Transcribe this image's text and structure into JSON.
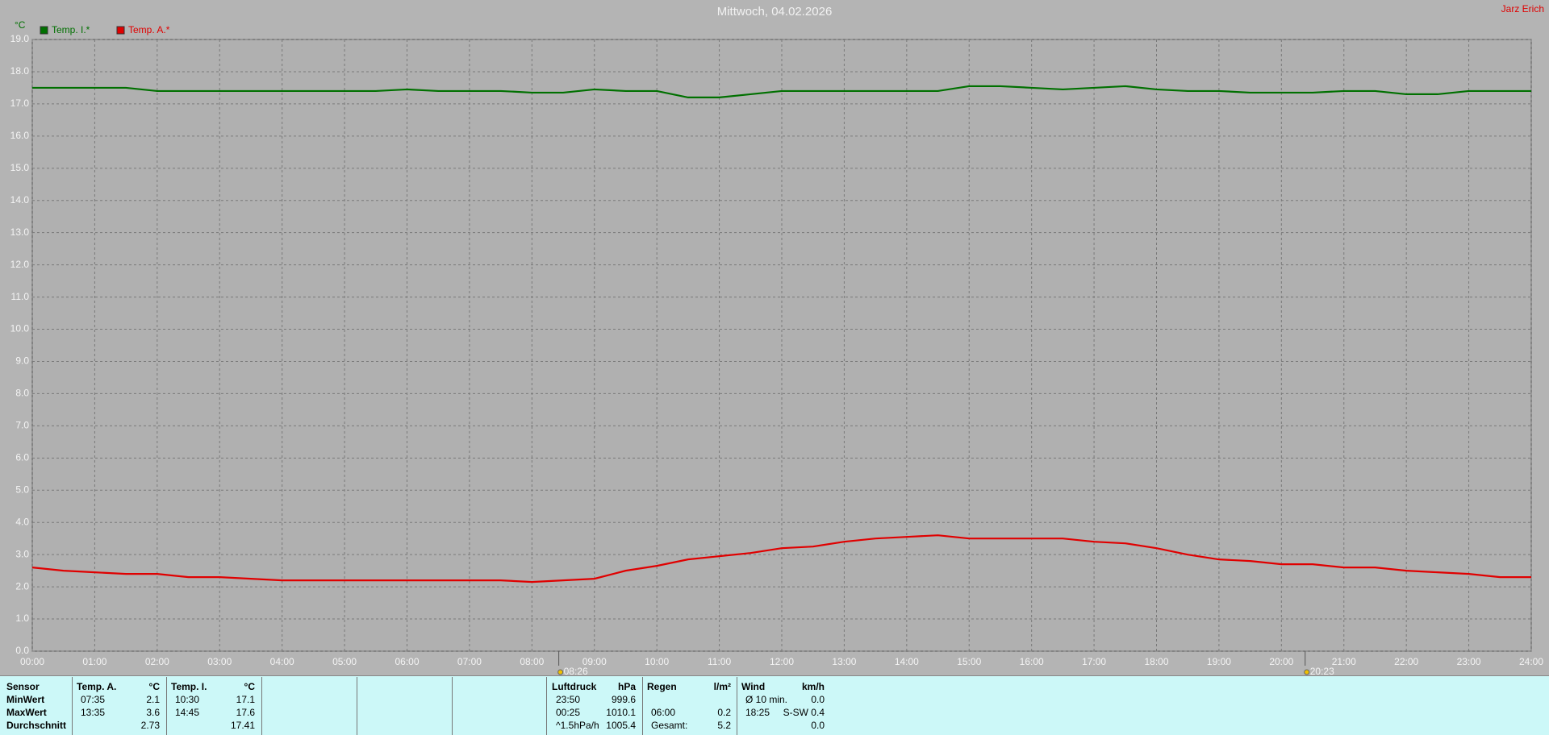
{
  "chart_data": {
    "type": "line",
    "title": "Mittwoch, 04.02.2026",
    "owner": "Jarz Erich",
    "y_unit": "°C",
    "x": [
      0,
      0.5,
      1,
      1.5,
      2,
      2.5,
      3,
      3.5,
      4,
      4.5,
      5,
      5.5,
      6,
      6.5,
      7,
      7.5,
      8,
      8.5,
      9,
      9.5,
      10,
      10.5,
      11,
      11.5,
      12,
      12.5,
      13,
      13.5,
      14,
      14.5,
      15,
      15.5,
      16,
      16.5,
      17,
      17.5,
      18,
      18.5,
      19,
      19.5,
      20,
      20.5,
      21,
      21.5,
      22,
      22.5,
      23,
      23.5,
      24
    ],
    "series": [
      {
        "name": "Temp. I.*",
        "color": "#007000",
        "values": [
          17.5,
          17.5,
          17.5,
          17.5,
          17.4,
          17.4,
          17.4,
          17.4,
          17.4,
          17.4,
          17.4,
          17.4,
          17.45,
          17.4,
          17.4,
          17.4,
          17.35,
          17.35,
          17.45,
          17.4,
          17.4,
          17.2,
          17.2,
          17.3,
          17.4,
          17.4,
          17.4,
          17.4,
          17.4,
          17.4,
          17.55,
          17.55,
          17.5,
          17.45,
          17.5,
          17.55,
          17.45,
          17.4,
          17.4,
          17.35,
          17.35,
          17.35,
          17.4,
          17.4,
          17.3,
          17.3,
          17.4,
          17.4,
          17.4
        ]
      },
      {
        "name": "Temp. A.*",
        "color": "#e00000",
        "values": [
          2.6,
          2.5,
          2.45,
          2.4,
          2.4,
          2.3,
          2.3,
          2.25,
          2.2,
          2.2,
          2.2,
          2.2,
          2.2,
          2.2,
          2.2,
          2.2,
          2.15,
          2.2,
          2.25,
          2.5,
          2.65,
          2.85,
          2.95,
          3.05,
          3.2,
          3.25,
          3.4,
          3.5,
          3.55,
          3.6,
          3.5,
          3.5,
          3.5,
          3.5,
          3.4,
          3.35,
          3.2,
          3.0,
          2.85,
          2.8,
          2.7,
          2.7,
          2.6,
          2.6,
          2.5,
          2.45,
          2.4,
          2.3,
          2.3
        ]
      }
    ],
    "xlim": [
      0,
      24
    ],
    "xticks": [
      {
        "value": 0,
        "label": "00:00"
      },
      {
        "value": 1,
        "label": "01:00"
      },
      {
        "value": 2,
        "label": "02:00"
      },
      {
        "value": 3,
        "label": "03:00"
      },
      {
        "value": 4,
        "label": "04:00"
      },
      {
        "value": 5,
        "label": "05:00"
      },
      {
        "value": 6,
        "label": "06:00"
      },
      {
        "value": 7,
        "label": "07:00"
      },
      {
        "value": 8,
        "label": "08:00"
      },
      {
        "value": 9,
        "label": "09:00"
      },
      {
        "value": 10,
        "label": "10:00"
      },
      {
        "value": 11,
        "label": "11:00"
      },
      {
        "value": 12,
        "label": "12:00"
      },
      {
        "value": 13,
        "label": "13:00"
      },
      {
        "value": 14,
        "label": "14:00"
      },
      {
        "value": 15,
        "label": "15:00"
      },
      {
        "value": 16,
        "label": "16:00"
      },
      {
        "value": 17,
        "label": "17:00"
      },
      {
        "value": 18,
        "label": "18:00"
      },
      {
        "value": 19,
        "label": "19:00"
      },
      {
        "value": 20,
        "label": "20:00"
      },
      {
        "value": 21,
        "label": "21:00"
      },
      {
        "value": 22,
        "label": "22:00"
      },
      {
        "value": 23,
        "label": "23:00"
      },
      {
        "value": 24,
        "label": "24:00"
      }
    ],
    "ylim": [
      0,
      19
    ],
    "yticks": [
      {
        "value": 0,
        "label": "0.0"
      },
      {
        "value": 1,
        "label": "1.0"
      },
      {
        "value": 2,
        "label": "2.0"
      },
      {
        "value": 3,
        "label": "3.0"
      },
      {
        "value": 4,
        "label": "4.0"
      },
      {
        "value": 5,
        "label": "5.0"
      },
      {
        "value": 6,
        "label": "6.0"
      },
      {
        "value": 7,
        "label": "7.0"
      },
      {
        "value": 8,
        "label": "8.0"
      },
      {
        "value": 9,
        "label": "9.0"
      },
      {
        "value": 10,
        "label": "10.0"
      },
      {
        "value": 11,
        "label": "11.0"
      },
      {
        "value": 12,
        "label": "12.0"
      },
      {
        "value": 13,
        "label": "13.0"
      },
      {
        "value": 14,
        "label": "14.0"
      },
      {
        "value": 15,
        "label": "15.0"
      },
      {
        "value": 16,
        "label": "16.0"
      },
      {
        "value": 17,
        "label": "17.0"
      },
      {
        "value": 18,
        "label": "18.0"
      },
      {
        "value": 19,
        "label": "19.0"
      }
    ],
    "grid": true,
    "sun_markers": [
      {
        "value": 8.43,
        "label": "08:26"
      },
      {
        "value": 20.38,
        "label": "20:23"
      }
    ]
  },
  "table": {
    "columns": [
      [
        "Sensor",
        "MinWert",
        "MaxWert",
        "Durchschnitt"
      ],
      [
        "Temp. A.",
        "07:35",
        "13:35",
        null
      ],
      [
        "°C",
        "2.1",
        "3.6",
        "2.73"
      ],
      [
        "Temp. I.",
        "10:30",
        "14:45",
        null
      ],
      [
        "°C",
        "17.1",
        "17.6",
        "17.41"
      ],
      [
        "Luftdruck",
        "23:50",
        "00:25",
        "^1.5hPa/h"
      ],
      [
        "hPa",
        "999.6",
        "1010.1",
        "1005.4"
      ],
      [
        "Regen",
        null,
        "06:00",
        "Gesamt:"
      ],
      [
        "l/m²",
        null,
        "0.2",
        "5.2"
      ],
      [
        "Wind",
        "Ø 10 min.",
        "18:25",
        null
      ],
      [
        "km/h",
        "0.0",
        "S-SW 0.4",
        "0.0"
      ]
    ]
  }
}
